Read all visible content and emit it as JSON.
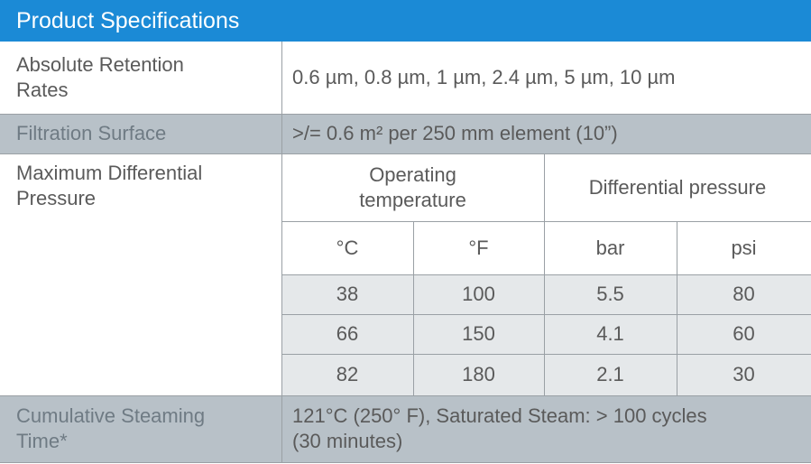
{
  "header": {
    "title": "Product Specifications"
  },
  "rows": [
    {
      "label": "Absolute Retention\nRates",
      "value": "0.6 µm, 0.8 µm, 1 µm, 2.4 µm, 5 µm, 10 µm"
    },
    {
      "label": "Filtration Surface",
      "value": ">/= 0.6 m² per 250 mm element (10”)"
    },
    {
      "label": "Cumulative Steaming\nTime*",
      "value": "121°C (250° F), Saturated Steam: > 100 cycles\n(30 minutes)"
    }
  ],
  "pressure": {
    "label": "Maximum Differential\nPressure",
    "groups": [
      "Operating\ntemperature",
      "Differential pressure"
    ],
    "units": [
      "°C",
      "°F",
      "bar",
      "psi"
    ],
    "rows": [
      [
        "38",
        "100",
        "5.5",
        "80"
      ],
      [
        "66",
        "150",
        "4.1",
        "60"
      ],
      [
        "82",
        "180",
        "2.1",
        "30"
      ]
    ]
  }
}
